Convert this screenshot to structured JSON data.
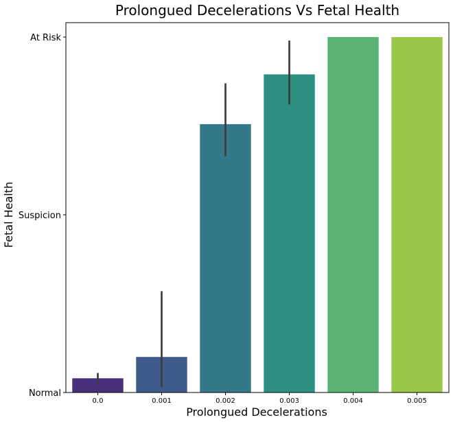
{
  "chart_data": {
    "type": "bar",
    "title": "Prolongued Decelerations Vs Fetal Health",
    "xlabel": "Prolongued Decelerations",
    "ylabel": "Fetal Health",
    "categories": [
      "0.0",
      "0.001",
      "0.002",
      "0.003",
      "0.004",
      "0.005"
    ],
    "values": [
      1.08,
      1.2,
      2.51,
      2.79,
      3.0,
      3.0
    ],
    "error_bars": [
      [
        1.05,
        1.11
      ],
      [
        1.03,
        1.57
      ],
      [
        2.33,
        2.74
      ],
      [
        2.62,
        2.98
      ],
      null,
      null
    ],
    "colors": [
      "#48307a",
      "#3e5b8a",
      "#35788a",
      "#2e9080",
      "#5ab374",
      "#9ac64a"
    ],
    "ylim": [
      1,
      3
    ],
    "yticks": [
      {
        "value": 1,
        "label": "Normal"
      },
      {
        "value": 2,
        "label": "Suspicion"
      },
      {
        "value": 3,
        "label": "At Risk"
      }
    ],
    "grid": false,
    "legend": "none"
  }
}
